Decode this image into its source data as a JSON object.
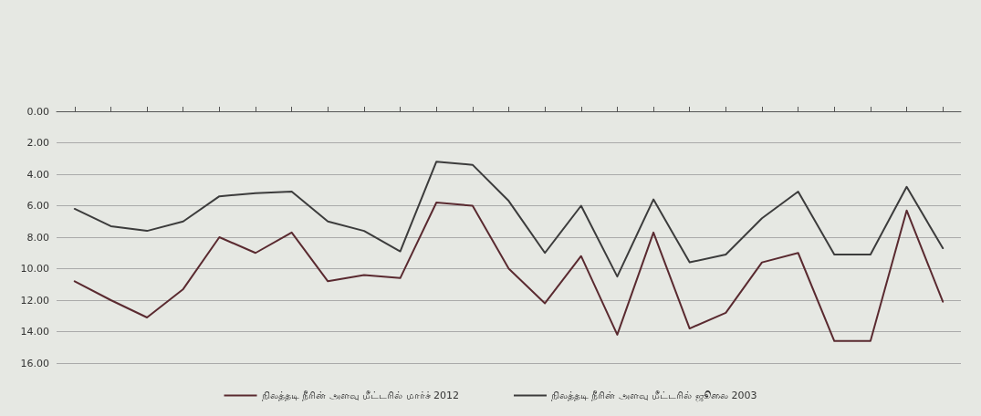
{
  "chart_data": {
    "type": "line",
    "categories": [
      null,
      null,
      null,
      null,
      null,
      null,
      null,
      null,
      null,
      null,
      null,
      null,
      null,
      null,
      null,
      null,
      null,
      null,
      null,
      null,
      null,
      null,
      null,
      null,
      null
    ],
    "series": [
      {
        "name": "நிலத்தடி நீரின் அளவு மீட்டரில் மார்ச் 2012",
        "color": "#5a2a30",
        "values": [
          10.8,
          12.0,
          13.1,
          11.3,
          8.0,
          9.0,
          7.7,
          10.8,
          10.4,
          10.6,
          5.8,
          6.0,
          10.0,
          12.2,
          9.2,
          14.2,
          7.7,
          13.8,
          12.8,
          9.6,
          9.0,
          14.6,
          14.6,
          6.3,
          12.1
        ]
      },
      {
        "name": "நிலத்தடி நீரின் அளவு மீட்டரில் ஜூலை 2003",
        "color": "#3c3c3c",
        "values": [
          6.2,
          7.3,
          7.6,
          7.0,
          5.4,
          5.2,
          5.1,
          7.0,
          7.6,
          8.9,
          3.2,
          3.4,
          5.7,
          9.0,
          6.0,
          10.5,
          5.6,
          9.6,
          9.1,
          6.8,
          5.1,
          9.1,
          9.1,
          4.8,
          8.7
        ]
      }
    ],
    "ylim": [
      16,
      0
    ],
    "yticks": [
      {
        "value": 0,
        "label": "0.00"
      },
      {
        "value": 2,
        "label": "2.00"
      },
      {
        "value": 4,
        "label": "4.00"
      },
      {
        "value": 6,
        "label": "6.00"
      },
      {
        "value": 8,
        "label": "8.00"
      },
      {
        "value": 10,
        "label": "10.00"
      },
      {
        "value": 12,
        "label": "12.00"
      },
      {
        "value": 14,
        "label": "14.00"
      },
      {
        "value": 16,
        "label": "16.00"
      }
    ],
    "grid": "y",
    "legend": "bottom",
    "marker": "none",
    "line_style": "solid"
  }
}
